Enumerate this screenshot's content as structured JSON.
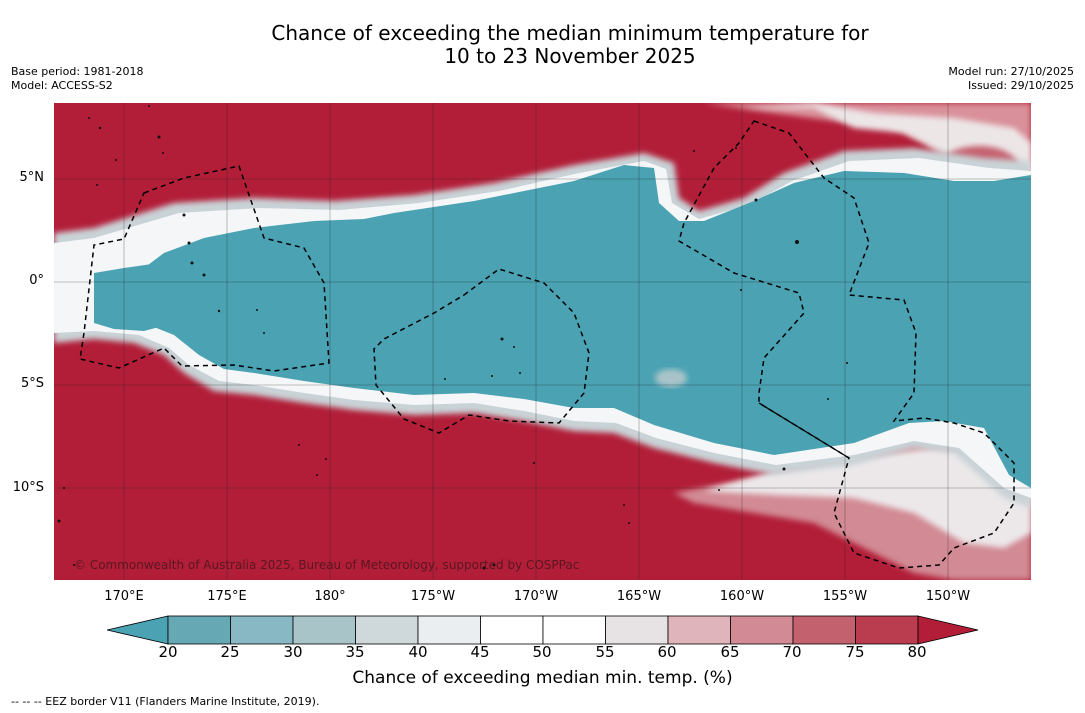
{
  "header": {
    "title_line1": "Chance of exceeding the median minimum temperature for",
    "title_line2": "10 to 23 November 2025",
    "base_period": "Base period: 1981-2018",
    "model": "Model: ACCESS-S2",
    "model_run": "Model run: 27/10/2025",
    "issued": "Issued: 29/10/2025"
  },
  "map": {
    "latitude_ticks": [
      "5°N",
      "0°",
      "5°S",
      "10°S"
    ],
    "longitude_ticks": [
      "170°E",
      "175°E",
      "180°",
      "175°W",
      "170°W",
      "165°W",
      "160°W",
      "155°W",
      "150°W"
    ],
    "copyright": "© Commonwealth of Australia 2025, Bureau of Meteorology, supported by COSPPac",
    "colors": {
      "below_20": "#4aa2b3",
      "high_80": "#b21e38",
      "land_outline": "#111111",
      "eez_border": "#000000"
    }
  },
  "colorbar": {
    "ticks": [
      "20",
      "25",
      "30",
      "35",
      "40",
      "45",
      "50",
      "55",
      "60",
      "65",
      "70",
      "75",
      "80"
    ],
    "colors": [
      "#4aa2b3",
      "#66a8b4",
      "#88b8c3",
      "#a9c4c9",
      "#cfd8db",
      "#eaeef1",
      "#ffffff",
      "#ffffff",
      "#e7e2e3",
      "#dfb5bb",
      "#d28a94",
      "#c4616e",
      "#b93d4f",
      "#b21e38"
    ],
    "label": "Chance of exceeding median min. temp. (%)"
  },
  "footer": {
    "eez_legend": "--  --  -- EEZ border V11 (Flanders Marine Institute, 2019)."
  }
}
